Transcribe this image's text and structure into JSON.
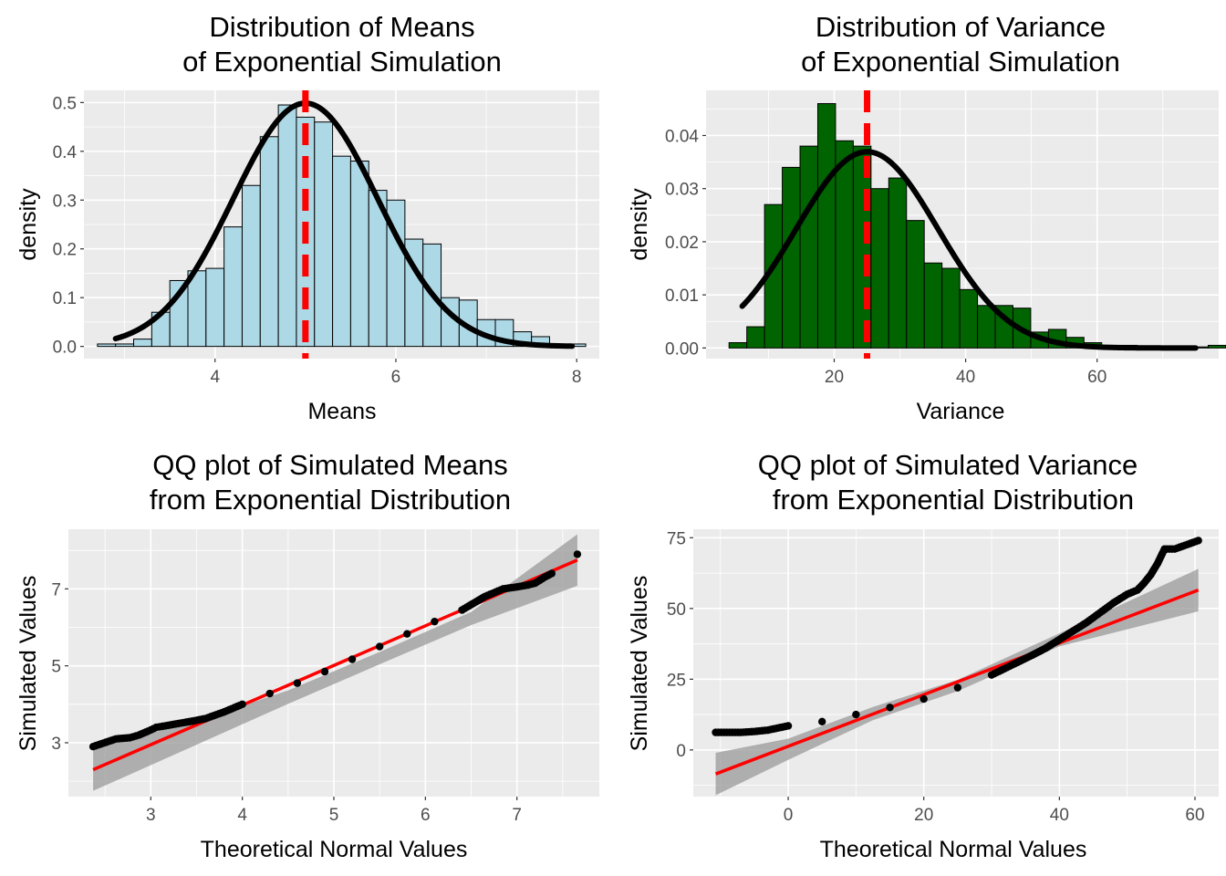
{
  "chart_data": [
    {
      "id": "means-hist",
      "type": "bar",
      "title": [
        "Distribution of Means",
        "of Exponential Simulation"
      ],
      "xlabel": "Means",
      "ylabel": "density",
      "xlim": [
        2.55,
        8.25
      ],
      "ylim": [
        -0.025,
        0.525
      ],
      "xticks": [
        4,
        6,
        8
      ],
      "yticks": [
        0.0,
        0.1,
        0.2,
        0.3,
        0.4,
        0.5
      ],
      "ytick_labels": [
        "0.0",
        "0.1",
        "0.2",
        "0.3",
        "0.4",
        "0.5"
      ],
      "grid": true,
      "colors": {
        "bar_fill": "#add8e6",
        "bar_stroke": "#000000",
        "curve": "#000000",
        "vline": "#ff0000"
      },
      "bins": {
        "start": 2.7,
        "width": 0.2,
        "values": [
          0.005,
          0.005,
          0.015,
          0.07,
          0.135,
          0.155,
          0.16,
          0.245,
          0.33,
          0.43,
          0.495,
          0.47,
          0.46,
          0.39,
          0.38,
          0.32,
          0.3,
          0.22,
          0.21,
          0.1,
          0.095,
          0.055,
          0.055,
          0.03,
          0.02,
          0.0,
          0.005
        ]
      },
      "density_curve": {
        "mean": 5.0,
        "sd": 0.8,
        "from": 2.9,
        "to": 7.95
      },
      "vline": 5.0
    },
    {
      "id": "variance-hist",
      "type": "bar",
      "title": [
        "Distribution of Variance",
        "of Exponential Simulation"
      ],
      "xlabel": "Variance",
      "ylabel": "density",
      "xlim": [
        0.5,
        78.5
      ],
      "ylim": [
        -0.002,
        0.0485
      ],
      "xticks": [
        20,
        40,
        60
      ],
      "yticks": [
        0.0,
        0.01,
        0.02,
        0.03,
        0.04
      ],
      "ytick_labels": [
        "0.00",
        "0.01",
        "0.02",
        "0.03",
        "0.04"
      ],
      "grid": true,
      "colors": {
        "bar_fill": "#006400",
        "bar_stroke": "#000000",
        "curve": "#000000",
        "vline": "#ff0000"
      },
      "bins": {
        "start": 4.0,
        "width": 2.7,
        "values": [
          0.001,
          0.004,
          0.027,
          0.034,
          0.038,
          0.046,
          0.039,
          0.038,
          0.03,
          0.032,
          0.024,
          0.016,
          0.015,
          0.011,
          0.008,
          0.008,
          0.0075,
          0.003,
          0.0035,
          0.002,
          0.001,
          0.0005,
          0.0005,
          0.0003,
          0.0002,
          0.0002,
          0.0002,
          0.0005
        ]
      },
      "density_curve": {
        "mean": 25.0,
        "sd": 10.8,
        "from": 6.0,
        "to": 75.0
      },
      "vline": 25.0
    },
    {
      "id": "means-qq",
      "type": "scatter",
      "title": [
        "QQ plot of Simulated Means",
        "from Exponential Distribution"
      ],
      "xlabel": "Theoretical Normal Values",
      "ylabel": "Simulated Values",
      "xlim": [
        2.1,
        7.9
      ],
      "ylim": [
        1.6,
        8.55
      ],
      "xticks": [
        3,
        4,
        5,
        6,
        7
      ],
      "yticks": [
        3,
        5,
        7
      ],
      "grid": true,
      "colors": {
        "points": "#000000",
        "line": "#ff0000",
        "band": "#999999"
      },
      "qq_points": [
        [
          2.37,
          2.9
        ],
        [
          2.62,
          3.1
        ],
        [
          2.77,
          3.13
        ],
        [
          2.87,
          3.2
        ],
        [
          2.97,
          3.3
        ],
        [
          3.06,
          3.4
        ],
        [
          3.16,
          3.44
        ],
        [
          3.3,
          3.5
        ],
        [
          3.45,
          3.56
        ],
        [
          3.6,
          3.63
        ],
        [
          3.8,
          3.8
        ],
        [
          4.0,
          4.0
        ],
        [
          4.3,
          4.28
        ],
        [
          4.6,
          4.55
        ],
        [
          4.9,
          4.85
        ],
        [
          5.2,
          5.17
        ],
        [
          5.5,
          5.5
        ],
        [
          5.8,
          5.83
        ],
        [
          6.1,
          6.15
        ],
        [
          6.4,
          6.45
        ],
        [
          6.65,
          6.8
        ],
        [
          6.85,
          7.0
        ],
        [
          7.0,
          7.05
        ],
        [
          7.12,
          7.1
        ],
        [
          7.2,
          7.15
        ],
        [
          7.3,
          7.3
        ],
        [
          7.38,
          7.4
        ],
        [
          7.66,
          7.9
        ]
      ],
      "fit_line": {
        "x": [
          2.37,
          7.66
        ],
        "y": [
          2.3,
          7.75
        ]
      },
      "band": {
        "x": [
          2.37,
          3.5,
          4.5,
          5.5,
          6.5,
          7.66
        ],
        "lower": [
          1.75,
          2.95,
          4.01,
          5.04,
          6.06,
          7.08
        ],
        "upper": [
          2.85,
          3.57,
          4.36,
          5.36,
          6.4,
          8.42
        ]
      }
    },
    {
      "id": "variance-qq",
      "type": "scatter",
      "title": [
        "QQ plot of Simulated Variance",
        "from Exponential Distribution"
      ],
      "xlabel": "Theoretical Normal Values",
      "ylabel": "Simulated Values",
      "xlim": [
        -14,
        63.5
      ],
      "ylim": [
        -16.5,
        78
      ],
      "xticks": [
        0,
        20,
        40,
        60
      ],
      "yticks": [
        0,
        25,
        50,
        75
      ],
      "grid": true,
      "colors": {
        "points": "#000000",
        "line": "#ff0000",
        "band": "#999999"
      },
      "qq_points": [
        [
          -10.7,
          6.2
        ],
        [
          -7,
          6.2
        ],
        [
          -5,
          6.5
        ],
        [
          -3,
          7
        ],
        [
          0,
          8.5
        ],
        [
          5,
          10
        ],
        [
          10,
          12.5
        ],
        [
          15,
          15
        ],
        [
          20,
          18
        ],
        [
          25,
          22
        ],
        [
          30,
          26.5
        ],
        [
          33,
          30
        ],
        [
          36,
          33.5
        ],
        [
          38,
          36
        ],
        [
          40,
          39
        ],
        [
          42,
          42
        ],
        [
          44,
          45
        ],
        [
          46,
          48.5
        ],
        [
          48,
          52
        ],
        [
          50,
          55
        ],
        [
          51.5,
          56.5
        ],
        [
          52.5,
          59
        ],
        [
          53.5,
          62
        ],
        [
          54.5,
          66
        ],
        [
          55.5,
          71
        ],
        [
          57,
          71
        ],
        [
          60.5,
          74
        ]
      ],
      "fit_line": {
        "x": [
          -10.7,
          60.5
        ],
        "y": [
          -8.5,
          56.5
        ]
      },
      "band": {
        "x": [
          -10.7,
          0,
          12.5,
          25,
          40,
          60.5
        ],
        "lower": [
          -16,
          -3.5,
          10.5,
          20.8,
          36.6,
          49
        ],
        "upper": [
          -1,
          4,
          15.2,
          24.8,
          41.2,
          64
        ]
      }
    }
  ]
}
